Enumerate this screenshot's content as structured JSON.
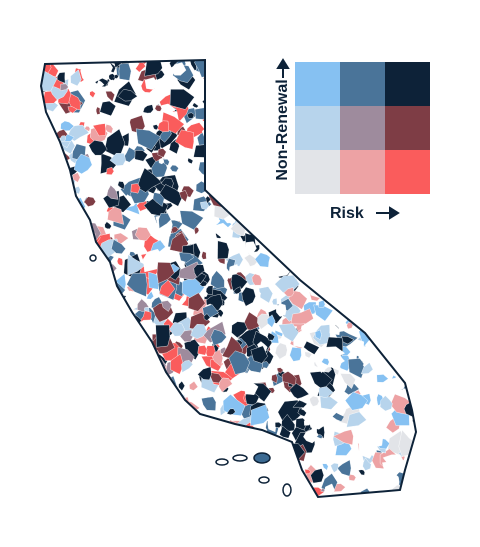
{
  "legend": {
    "y_label": "Non-Renewal",
    "x_label": "Risk"
  }
}
